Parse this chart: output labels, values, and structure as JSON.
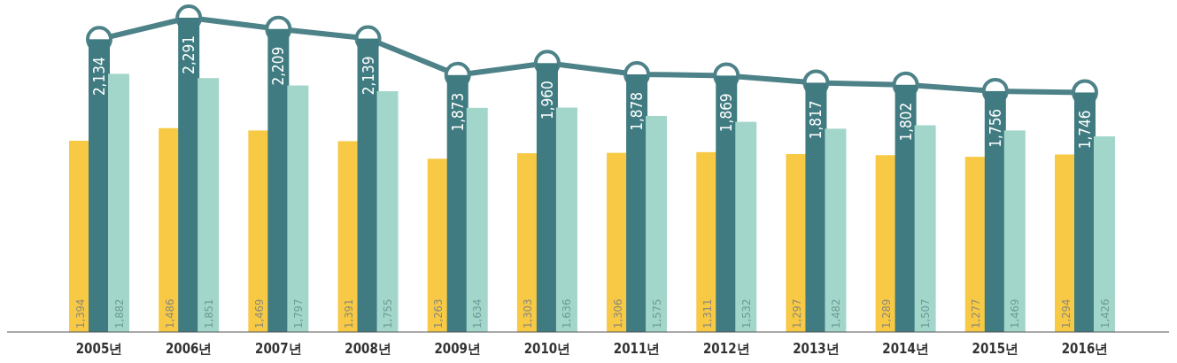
{
  "chart_data": {
    "type": "bar",
    "categories": [
      "2005년",
      "2006년",
      "2007년",
      "2008년",
      "2009년",
      "2010년",
      "2011년",
      "2012년",
      "2013년",
      "2014년",
      "2015년",
      "2016년"
    ],
    "series": [
      {
        "color": "#f7c945",
        "values": [
          1394,
          1486,
          1469,
          1391,
          1263,
          1303,
          1306,
          1311,
          1297,
          1289,
          1277,
          1294
        ],
        "value_labels": [
          "1,394",
          "1,486",
          "1,469",
          "1,391",
          "1,263",
          "1,303",
          "1,306",
          "1,311",
          "1,297",
          "1,289",
          "1,277",
          "1,294"
        ]
      },
      {
        "color": "#3f7b80",
        "values": [
          2134,
          2291,
          2209,
          2139,
          1873,
          1960,
          1878,
          1869,
          1817,
          1802,
          1756,
          1746
        ],
        "value_labels": [
          "2,134",
          "2,291",
          "2,209",
          "2,139",
          "1,873",
          "1,960",
          "1,878",
          "1,869",
          "1,817",
          "1,802",
          "1,756",
          "1,746"
        ]
      },
      {
        "color": "#a3d6ca",
        "values": [
          1882,
          1851,
          1797,
          1755,
          1634,
          1636,
          1575,
          1532,
          1482,
          1507,
          1469,
          1426
        ],
        "value_labels": [
          "1,882",
          "1,851",
          "1,797",
          "1,755",
          "1,634",
          "1,636",
          "1,575",
          "1,532",
          "1,482",
          "1,507",
          "1,469",
          "1,426"
        ]
      },
      {
        "type": "line",
        "color": "#4d8288",
        "values": [
          2134,
          2291,
          2209,
          2139,
          1873,
          1960,
          1878,
          1869,
          1817,
          1802,
          1756,
          1746
        ]
      }
    ],
    "marker": "circle"
  }
}
